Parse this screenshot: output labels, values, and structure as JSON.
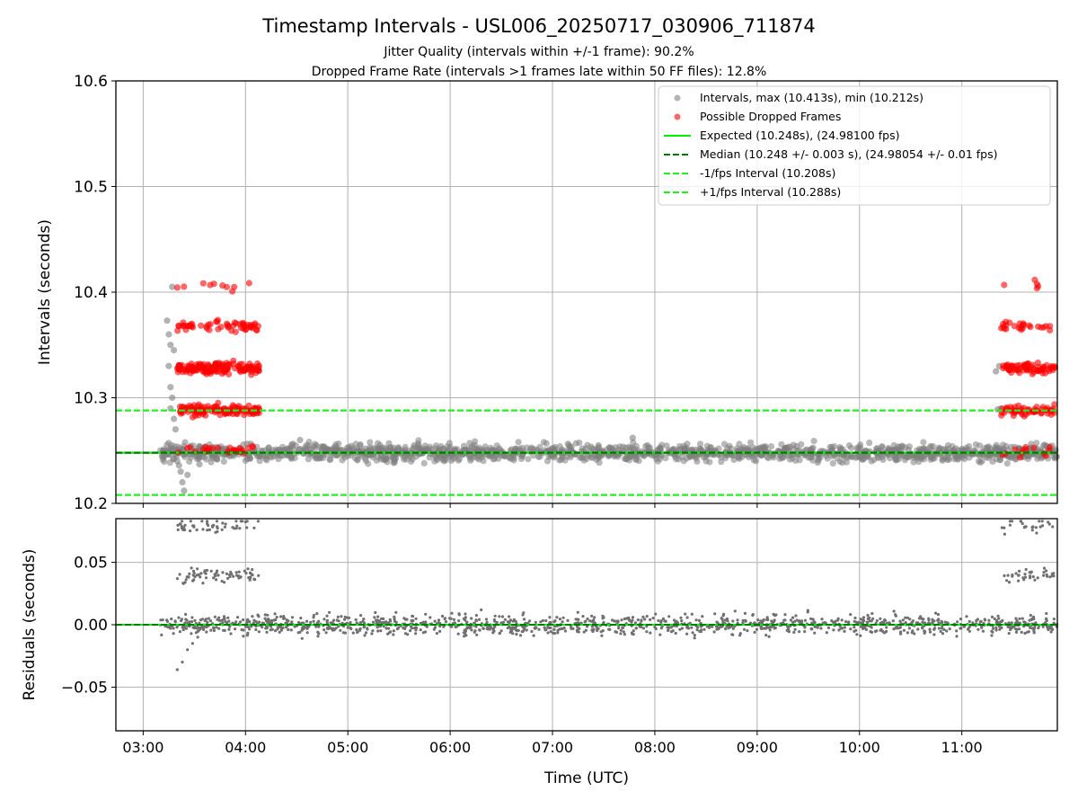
{
  "title": "Timestamp Intervals - USL006_20250717_030906_711874",
  "subtitle1": "Jitter Quality (intervals within +/-1 frame): 90.2%",
  "subtitle2": "Dropped Frame Rate (intervals >1 frames late within 50 FF files): 12.8%",
  "colors": {
    "intervals": "#808080",
    "dropped": "#ff0000",
    "expected": "#00ee00",
    "median": "#007700",
    "bounds": "#22ee22",
    "residuals": "#707070",
    "grid": "#b0b0b0"
  },
  "chart_data": [
    {
      "type": "scatter",
      "ylabel": "Intervals (seconds)",
      "xlabel": "",
      "xlim": [
        "02:44",
        "11:56"
      ],
      "ylim": [
        10.2,
        10.6
      ],
      "y_ticks": [
        "10.2",
        "10.3",
        "10.4",
        "10.5",
        "10.6"
      ],
      "grid": true,
      "legend_position": "top-right",
      "legend": [
        "Intervals, max (10.413s), min (10.212s)",
        "Possible Dropped Frames",
        "Expected (10.248s), (24.98100 fps)",
        "Median (10.248 +/- 0.003 s), (24.98054 +/- 0.01 fps)",
        "-1/fps Interval (10.208s)",
        "+1/fps Interval (10.288s)"
      ],
      "reference_lines": {
        "expected": 10.248,
        "median": 10.248,
        "minus_1fps": 10.208,
        "plus_1fps": 10.288
      },
      "stats": {
        "max": 10.413,
        "min": 10.212
      },
      "series": [
        {
          "name": "Intervals",
          "baseline": {
            "x": [
              "03:10",
              "11:56"
            ],
            "y": 10.248,
            "spread": 0.004
          },
          "points": [
            {
              "x": "03:14",
              "y": 10.373
            },
            {
              "x": "03:15",
              "y": 10.36
            },
            {
              "x": "03:16",
              "y": 10.35
            },
            {
              "x": "03:15",
              "y": 10.33
            },
            {
              "x": "03:16",
              "y": 10.31
            },
            {
              "x": "03:17",
              "y": 10.3
            },
            {
              "x": "03:16",
              "y": 10.29
            },
            {
              "x": "03:18",
              "y": 10.28
            },
            {
              "x": "03:19",
              "y": 10.27
            },
            {
              "x": "03:17",
              "y": 10.405
            },
            {
              "x": "03:18",
              "y": 10.345
            },
            {
              "x": "03:20",
              "y": 10.24
            },
            {
              "x": "03:21",
              "y": 10.236
            },
            {
              "x": "03:22",
              "y": 10.23
            },
            {
              "x": "03:23",
              "y": 10.22
            },
            {
              "x": "03:24",
              "y": 10.212
            },
            {
              "x": "03:26",
              "y": 10.227
            },
            {
              "x": "03:33",
              "y": 10.237
            },
            {
              "x": "04:32",
              "y": 10.26
            },
            {
              "x": "07:47",
              "y": 10.262
            },
            {
              "x": "11:20",
              "y": 10.325
            },
            {
              "x": "11:22",
              "y": 10.33
            },
            {
              "x": "11:23",
              "y": 10.29
            },
            {
              "x": "11:21",
              "y": 10.289
            }
          ]
        },
        {
          "name": "Possible Dropped Frames",
          "clusters": [
            {
              "x": [
                "03:20",
                "04:08"
              ],
              "levels": [
                10.288,
                10.328,
                10.368,
                10.407,
                10.25
              ]
            },
            {
              "x": [
                "11:23",
                "11:55"
              ],
              "levels": [
                10.288,
                10.328,
                10.368,
                10.407,
                10.25
              ]
            }
          ]
        }
      ]
    },
    {
      "type": "scatter",
      "ylabel": "Residuals (seconds)",
      "xlabel": "Time (UTC)",
      "xlim": [
        "02:44",
        "11:56"
      ],
      "ylim": [
        -0.085,
        0.085
      ],
      "y_ticks": [
        "−0.05",
        "0.00",
        "0.05"
      ],
      "x_ticks": [
        "03:00",
        "04:00",
        "05:00",
        "06:00",
        "07:00",
        "08:00",
        "09:00",
        "10:00",
        "11:00"
      ],
      "grid": true,
      "series": [
        {
          "name": "Residuals",
          "levels": [
            0.0,
            0.04,
            0.08
          ],
          "lowest": -0.036
        }
      ]
    }
  ]
}
